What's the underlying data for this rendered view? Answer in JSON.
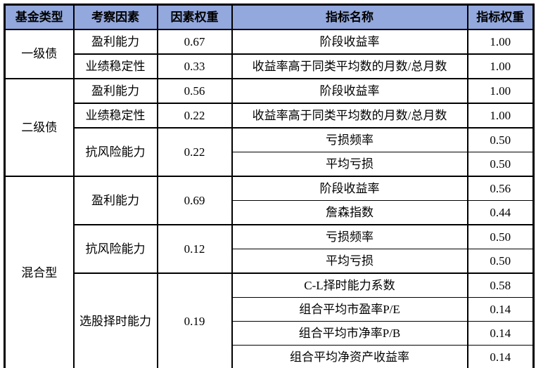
{
  "colors": {
    "header_background": "#93a8dc",
    "border": "#000000",
    "text": "#000000",
    "page_background": "#ffffff"
  },
  "table": {
    "headers": {
      "fund_type": "基金类型",
      "factor": "考察因素",
      "factor_weight": "因素权重",
      "indicator_name": "指标名称",
      "indicator_weight": "指标权重"
    },
    "groups": [
      {
        "fund_type": "一级债",
        "factors": [
          {
            "name": "盈利能力",
            "weight": "0.67",
            "indicators": [
              {
                "name": "阶段收益率",
                "weight": "1.00"
              }
            ]
          },
          {
            "name": "业绩稳定性",
            "weight": "0.33",
            "indicators": [
              {
                "name": "收益率高于同类平均数的月数/总月数",
                "weight": "1.00"
              }
            ]
          }
        ]
      },
      {
        "fund_type": "二级债",
        "factors": [
          {
            "name": "盈利能力",
            "weight": "0.56",
            "indicators": [
              {
                "name": "阶段收益率",
                "weight": "1.00"
              }
            ]
          },
          {
            "name": "业绩稳定性",
            "weight": "0.22",
            "indicators": [
              {
                "name": "收益率高于同类平均数的月数/总月数",
                "weight": "1.00"
              }
            ]
          },
          {
            "name": "抗风险能力",
            "weight": "0.22",
            "indicators": [
              {
                "name": "亏损频率",
                "weight": "0.50"
              },
              {
                "name": "平均亏损",
                "weight": "0.50"
              }
            ]
          }
        ]
      },
      {
        "fund_type": "混合型",
        "factors": [
          {
            "name": "盈利能力",
            "weight": "0.69",
            "indicators": [
              {
                "name": "阶段收益率",
                "weight": "0.56"
              },
              {
                "name": "詹森指数",
                "weight": "0.44"
              }
            ]
          },
          {
            "name": "抗风险能力",
            "weight": "0.12",
            "indicators": [
              {
                "name": "亏损频率",
                "weight": "0.50"
              },
              {
                "name": "平均亏损",
                "weight": "0.50"
              }
            ]
          },
          {
            "name": "选股择时能力",
            "weight": "0.19",
            "indicators": [
              {
                "name": "C-L择时能力系数",
                "weight": "0.58"
              },
              {
                "name": "组合平均市盈率P/E",
                "weight": "0.14"
              },
              {
                "name": "组合平均市净率P/B",
                "weight": "0.14"
              },
              {
                "name": "组合平均净资产收益率",
                "weight": "0.14"
              }
            ]
          }
        ]
      }
    ]
  }
}
